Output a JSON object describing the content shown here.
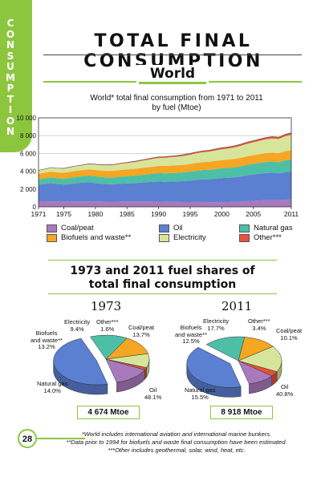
{
  "sidebar": {
    "letters": [
      "C",
      "O",
      "N",
      "S",
      "U",
      "M",
      "P",
      "T",
      "I",
      "O",
      "N"
    ]
  },
  "header": {
    "title": "TOTAL FINAL CONSUMPTION",
    "region": "World"
  },
  "colors": {
    "coal_peat": "#a979bd",
    "oil": "#5b7fd1",
    "natural_gas": "#4dbfa7",
    "biofuels_waste": "#f5a623",
    "electricity": "#d7e59a",
    "other": "#e8503a",
    "accent": "#8cc63f"
  },
  "chart_data": [
    {
      "type": "area",
      "title": "World* total final consumption from 1971 to 2011\nby fuel (Mtoe)",
      "x": [
        1971,
        1972,
        1973,
        1974,
        1975,
        1976,
        1977,
        1978,
        1979,
        1980,
        1981,
        1982,
        1983,
        1984,
        1985,
        1986,
        1987,
        1988,
        1989,
        1990,
        1991,
        1992,
        1993,
        1994,
        1995,
        1996,
        1997,
        1998,
        1999,
        2000,
        2001,
        2002,
        2003,
        2004,
        2005,
        2006,
        2007,
        2008,
        2009,
        2010,
        2011
      ],
      "x_ticks": [
        "1971",
        "1975",
        "1980",
        "1985",
        "1990",
        "1995",
        "2000",
        "2005",
        "2011"
      ],
      "y_ticks": [
        "0",
        "2 000",
        "4 000",
        "6 000",
        "8 000",
        "10 000"
      ],
      "ylim": [
        0,
        10000
      ],
      "stack_order": [
        "Coal/peat",
        "Oil",
        "Natural gas",
        "Biofuels and waste**",
        "Electricity",
        "Other***"
      ],
      "series": [
        {
          "name": "Coal/peat",
          "values": [
            630,
            630,
            620,
            610,
            600,
            600,
            610,
            610,
            620,
            620,
            600,
            590,
            590,
            600,
            620,
            610,
            610,
            610,
            600,
            600,
            560,
            560,
            550,
            540,
            540,
            550,
            540,
            520,
            520,
            530,
            540,
            560,
            600,
            640,
            680,
            720,
            760,
            780,
            760,
            800,
            840
          ]
        },
        {
          "name": "Oil",
          "values": [
            1850,
            1950,
            2050,
            1950,
            1900,
            1980,
            2050,
            2100,
            2150,
            2050,
            1980,
            1950,
            1950,
            2000,
            2000,
            2050,
            2100,
            2150,
            2200,
            2250,
            2250,
            2280,
            2300,
            2350,
            2400,
            2480,
            2550,
            2580,
            2650,
            2700,
            2720,
            2750,
            2800,
            2900,
            2950,
            3000,
            3050,
            3050,
            3000,
            3100,
            3130
          ]
        },
        {
          "name": "Natural gas",
          "values": [
            600,
            620,
            650,
            660,
            670,
            690,
            710,
            720,
            750,
            760,
            760,
            760,
            770,
            790,
            820,
            830,
            850,
            880,
            910,
            940,
            950,
            960,
            970,
            980,
            1000,
            1030,
            1050,
            1060,
            1080,
            1100,
            1110,
            1130,
            1160,
            1180,
            1200,
            1220,
            1240,
            1260,
            1250,
            1320,
            1350
          ]
        },
        {
          "name": "Biofuels and waste**",
          "values": [
            630,
            635,
            640,
            650,
            660,
            670,
            680,
            690,
            700,
            710,
            720,
            730,
            740,
            750,
            760,
            770,
            780,
            790,
            800,
            810,
            830,
            840,
            850,
            860,
            870,
            880,
            890,
            900,
            910,
            920,
            930,
            940,
            950,
            960,
            970,
            980,
            990,
            1000,
            1010,
            1030,
            1050
          ]
        },
        {
          "name": "Electricity",
          "values": [
            380,
            400,
            440,
            450,
            470,
            500,
            520,
            550,
            580,
            600,
            620,
            630,
            660,
            700,
            720,
            750,
            790,
            830,
            870,
            900,
            920,
            940,
            970,
            1000,
            1050,
            1080,
            1110,
            1140,
            1180,
            1220,
            1250,
            1300,
            1350,
            1400,
            1450,
            1500,
            1560,
            1590,
            1600,
            1680,
            1730
          ]
        },
        {
          "name": "Other***",
          "values": [
            20,
            22,
            25,
            27,
            30,
            33,
            36,
            40,
            45,
            50,
            55,
            60,
            65,
            70,
            80,
            85,
            90,
            100,
            110,
            120,
            125,
            130,
            135,
            140,
            145,
            150,
            155,
            160,
            165,
            170,
            175,
            180,
            185,
            190,
            195,
            200,
            205,
            210,
            210,
            215,
            220
          ]
        }
      ]
    },
    {
      "type": "pie",
      "title": "1973",
      "slices": [
        {
          "name": "Oil",
          "value": 48.1
        },
        {
          "name": "Natural gas",
          "value": 14.0
        },
        {
          "name": "Biofuels and waste**",
          "value": 13.2
        },
        {
          "name": "Electricity",
          "value": 9.4
        },
        {
          "name": "Other***",
          "value": 1.6
        },
        {
          "name": "Coal/peat",
          "value": 13.7
        }
      ],
      "total": "4 674 Mtoe"
    },
    {
      "type": "pie",
      "title": "2011",
      "slices": [
        {
          "name": "Oil",
          "value": 40.8
        },
        {
          "name": "Natural gas",
          "value": 15.5
        },
        {
          "name": "Biofuels and waste**",
          "value": 12.5
        },
        {
          "name": "Electricity",
          "value": 17.7
        },
        {
          "name": "Other***",
          "value": 3.4
        },
        {
          "name": "Coal/peat",
          "value": 10.1
        }
      ],
      "total": "8 918 Mtoe"
    }
  ],
  "legend": {
    "coal_peat": "Coal/peat",
    "oil": "Oil",
    "natural_gas": "Natural gas",
    "biofuels": "Biofuels and waste**",
    "electricity": "Electricity",
    "other": "Other***"
  },
  "shares": {
    "title_line1": "1973 and 2011 fuel shares of",
    "title_line2": "total final consumption",
    "p1973": {
      "year": "1973",
      "coal": "Coal/peat",
      "coal_pct": "13.7%",
      "other": "Other***",
      "other_pct": "1.6%",
      "elec": "Electricity",
      "elec_pct": "9.4%",
      "bio1": "Biofuels",
      "bio2": "and waste**",
      "bio_pct": "13.2%",
      "gas": "Natural gas",
      "gas_pct": "14.0%",
      "oil": "Oil",
      "oil_pct": "48.1%",
      "total": "4 674 Mtoe"
    },
    "p2011": {
      "year": "2011",
      "coal": "Coal/peat",
      "coal_pct": "10.1%",
      "other": "Other***",
      "other_pct": "3.4%",
      "elec": "Electricity",
      "elec_pct": "17.7%",
      "bio1": "Biofuels",
      "bio2": "and waste**",
      "bio_pct": "12.5%",
      "gas": "Natural gas",
      "gas_pct": "15.5%",
      "oil": "Oil",
      "oil_pct": "40.8%",
      "total": "8 918 Mtoe"
    }
  },
  "page_number": "28",
  "footnotes": [
    "*World includes international aviation and international marine bunkers.",
    "**Data prior to 1994 for biofuels and waste final consumption have been estimated.",
    "***Other includes geothermal, solar, wind, heat, etc."
  ]
}
